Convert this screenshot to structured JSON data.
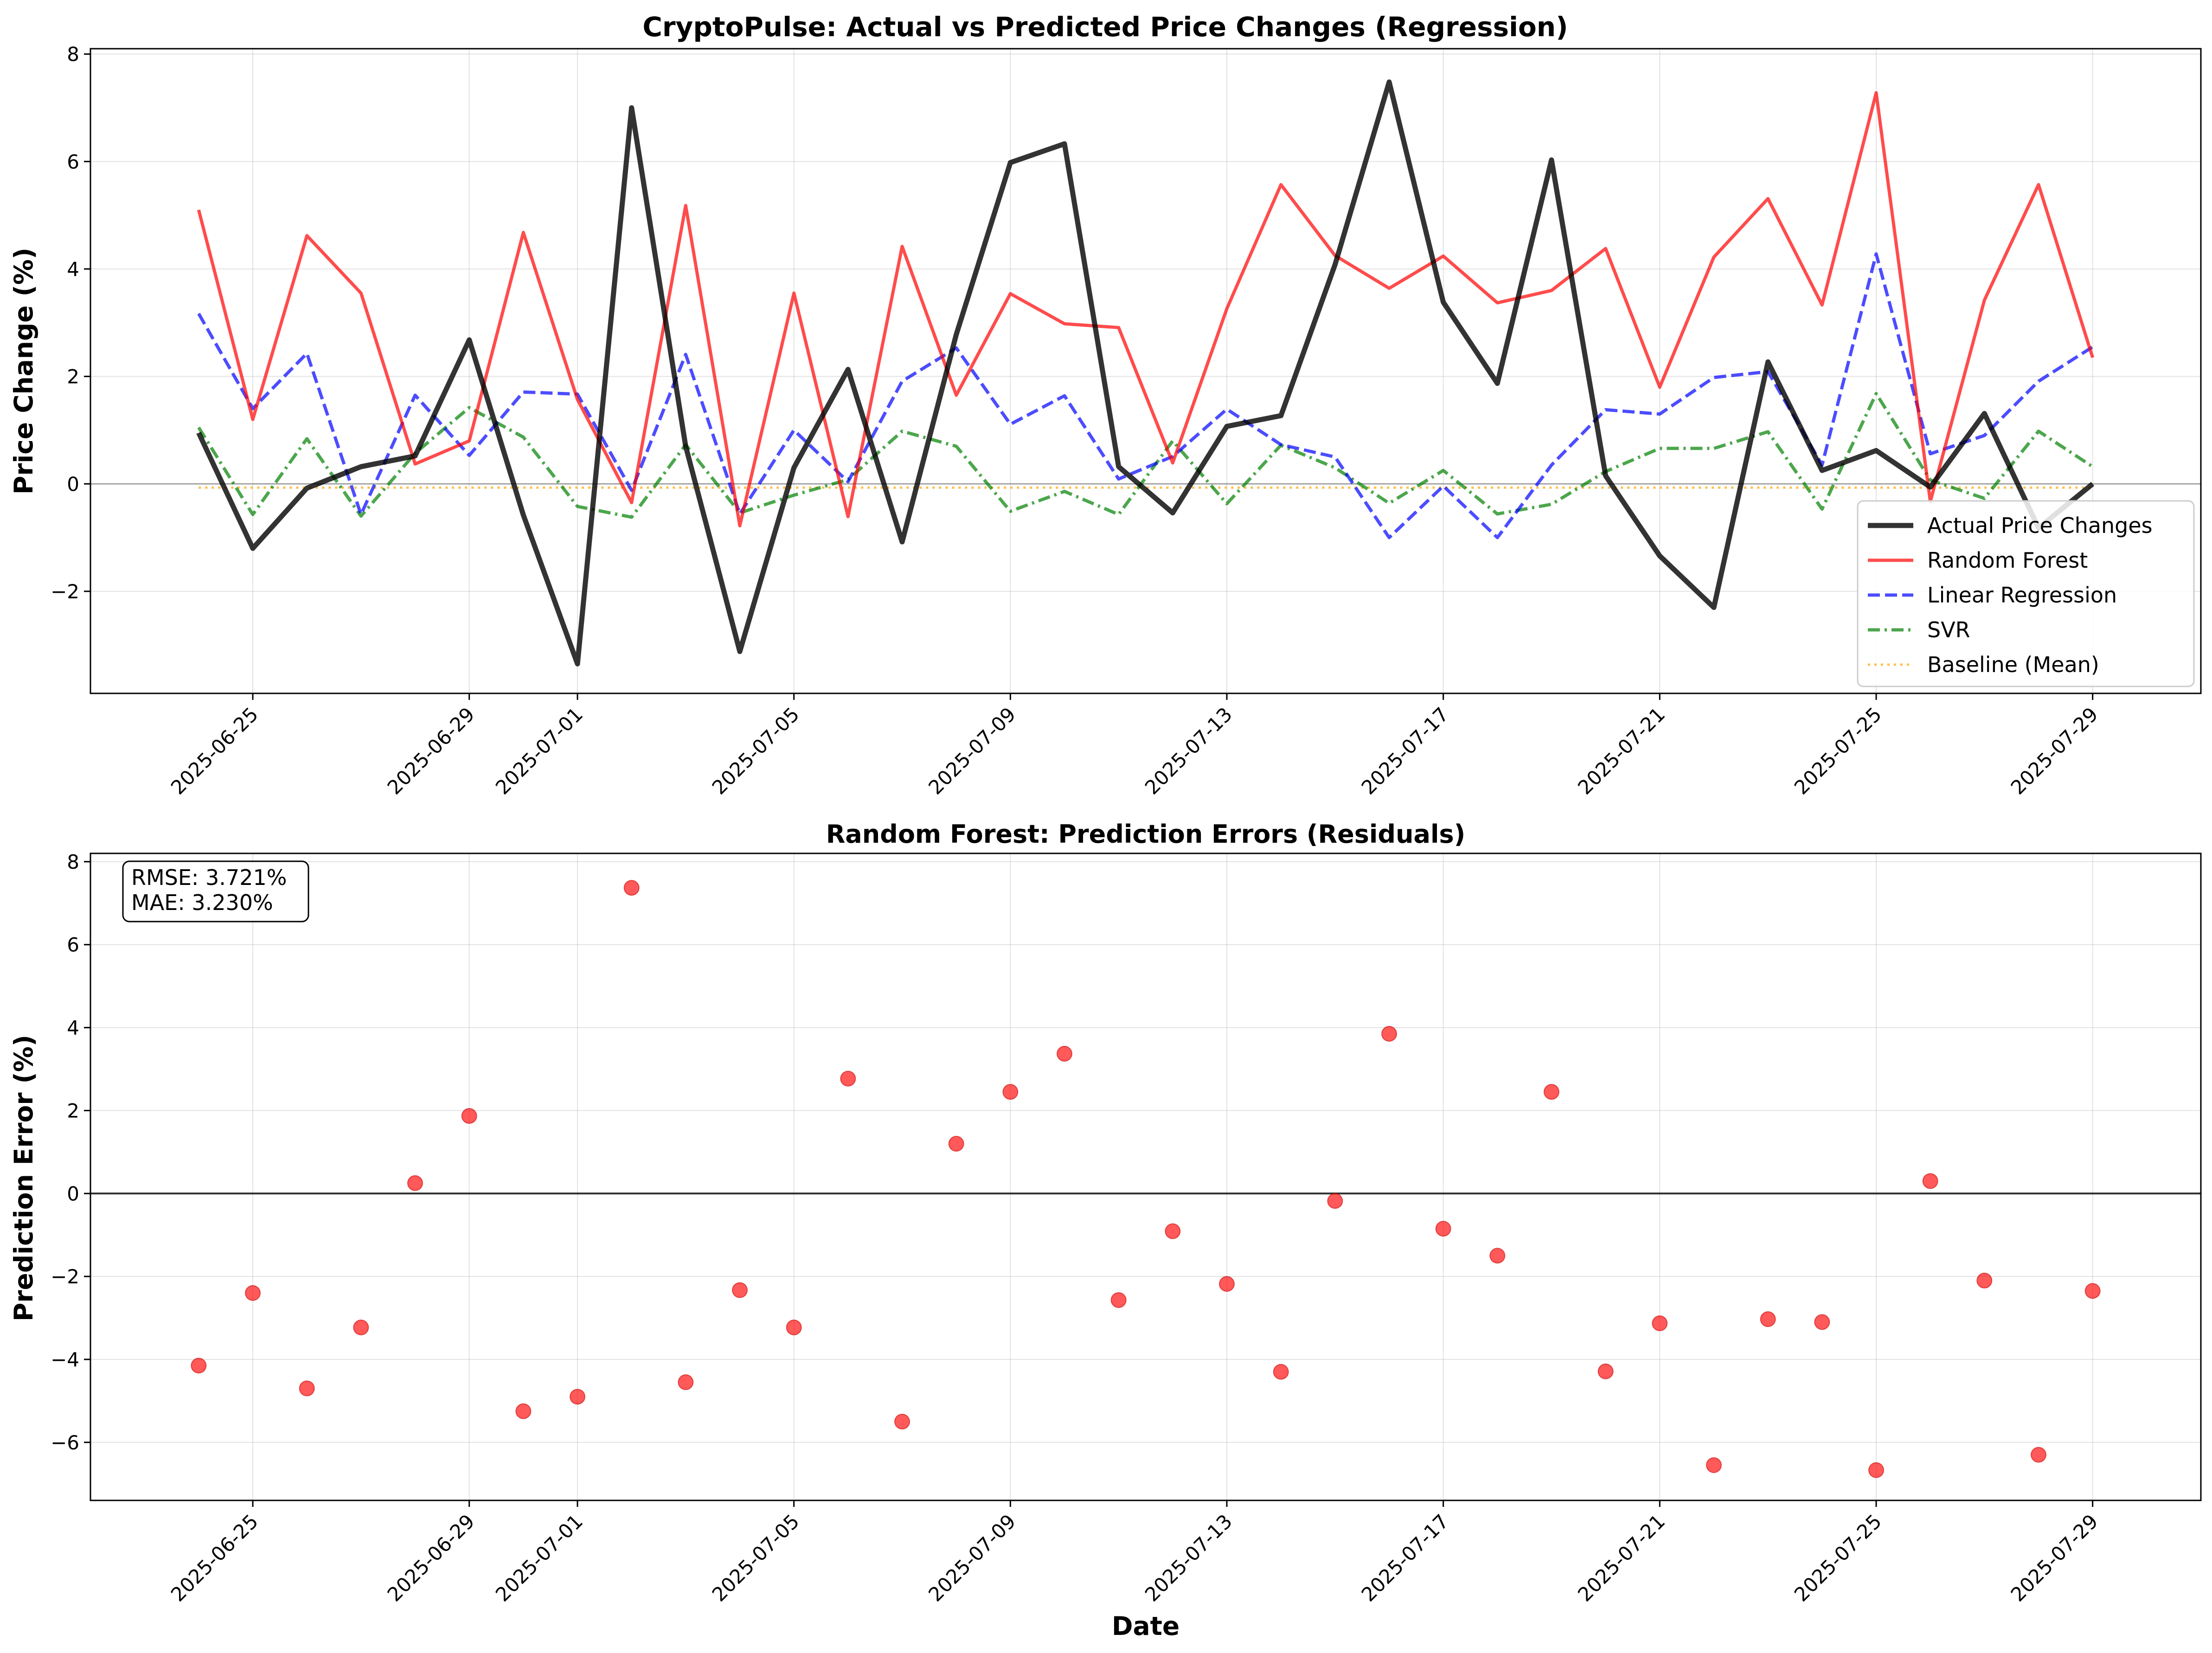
{
  "chart_data": [
    {
      "type": "line",
      "title": "CryptoPulse: Actual vs Predicted Price Changes (Regression)",
      "xlabel": "",
      "ylabel": "Price Change (%)",
      "x_start": "2025-06-24",
      "x_end": "2025-07-29",
      "xlim": [
        "2025-06-22",
        "2025-07-31"
      ],
      "ylim": [
        -3.9,
        8.1
      ],
      "xticks": [
        "2025-06-25",
        "2025-06-29",
        "2025-07-01",
        "2025-07-05",
        "2025-07-09",
        "2025-07-13",
        "2025-07-17",
        "2025-07-21",
        "2025-07-25",
        "2025-07-29"
      ],
      "yticks": [
        -2,
        0,
        2,
        4,
        6,
        8
      ],
      "ytick_labels": [
        "−2",
        "0",
        "2",
        "4",
        "6",
        "8"
      ],
      "grid": true,
      "legend": "bottom-right",
      "zero_line": true,
      "series": [
        {
          "name": "Actual Price Changes",
          "color": "#000000",
          "style": "solid",
          "values": [
            0.95,
            -1.2,
            -0.08,
            0.32,
            0.52,
            2.68,
            -0.58,
            -3.35,
            7.0,
            0.7,
            -3.12,
            0.3,
            2.13,
            -1.08,
            2.78,
            5.98,
            6.33,
            0.32,
            -0.54,
            1.07,
            1.27,
            4.08,
            7.48,
            3.38,
            1.87,
            6.03,
            0.15,
            -1.34,
            -2.3,
            2.27,
            0.25,
            0.62,
            -0.06,
            1.31,
            -0.82,
            0.0
          ]
        },
        {
          "name": "Random Forest",
          "color": "#ff0000",
          "style": "solid",
          "values": [
            5.1,
            1.2,
            4.62,
            3.55,
            0.37,
            0.8,
            4.68,
            1.57,
            -0.35,
            5.18,
            -0.78,
            3.55,
            -0.61,
            4.42,
            1.65,
            3.54,
            2.98,
            2.91,
            0.39,
            3.26,
            5.57,
            4.25,
            3.64,
            4.24,
            3.37,
            3.6,
            4.38,
            1.8,
            4.22,
            5.31,
            3.33,
            7.28,
            -0.33,
            3.42,
            5.57,
            2.35
          ]
        },
        {
          "name": "Linear Regression",
          "color": "#0000ff",
          "style": "dashed",
          "values": [
            3.17,
            1.4,
            2.43,
            -0.57,
            1.65,
            0.53,
            1.71,
            1.67,
            -0.12,
            2.41,
            -0.56,
            1.0,
            0.04,
            1.91,
            2.53,
            1.11,
            1.64,
            0.09,
            0.51,
            1.39,
            0.73,
            0.5,
            -1.0,
            -0.04,
            -1.0,
            0.35,
            1.38,
            1.3,
            1.98,
            2.09,
            0.35,
            4.28,
            0.56,
            0.9,
            1.91,
            2.55
          ]
        },
        {
          "name": "SVR",
          "color": "#008000",
          "style": "dashdot",
          "values": [
            1.05,
            -0.57,
            0.84,
            -0.6,
            0.57,
            1.42,
            0.87,
            -0.42,
            -0.62,
            0.73,
            -0.54,
            -0.21,
            0.08,
            0.98,
            0.7,
            -0.51,
            -0.14,
            -0.57,
            0.8,
            -0.37,
            0.72,
            0.3,
            -0.36,
            0.25,
            -0.56,
            -0.38,
            0.23,
            0.66,
            0.66,
            0.97,
            -0.47,
            1.68,
            0.07,
            -0.27,
            0.98,
            0.32
          ]
        },
        {
          "name": "Baseline (Mean)",
          "color": "#ffa500",
          "style": "dotted",
          "values": [
            -0.07,
            -0.07,
            -0.07,
            -0.07,
            -0.07,
            -0.07,
            -0.07,
            -0.07,
            -0.07,
            -0.07,
            -0.07,
            -0.07,
            -0.07,
            -0.07,
            -0.07,
            -0.07,
            -0.07,
            -0.07,
            -0.07,
            -0.07,
            -0.07,
            -0.07,
            -0.07,
            -0.07,
            -0.07,
            -0.07,
            -0.07,
            -0.07,
            -0.07,
            -0.07,
            -0.07,
            -0.07,
            -0.07,
            -0.07,
            -0.07,
            -0.07
          ]
        }
      ]
    },
    {
      "type": "scatter",
      "title": "Random Forest: Prediction Errors (Residuals)",
      "xlabel": "Date",
      "ylabel": "Prediction Error (%)",
      "xlim": [
        "2025-06-22",
        "2025-07-31"
      ],
      "ylim": [
        -7.4,
        8.2
      ],
      "xticks": [
        "2025-06-25",
        "2025-06-29",
        "2025-07-01",
        "2025-07-05",
        "2025-07-09",
        "2025-07-13",
        "2025-07-17",
        "2025-07-21",
        "2025-07-25",
        "2025-07-29"
      ],
      "yticks": [
        -6,
        -4,
        -2,
        0,
        2,
        4,
        6,
        8
      ],
      "ytick_labels": [
        "−6",
        "−4",
        "−2",
        "0",
        "2",
        "4",
        "6",
        "8"
      ],
      "grid": true,
      "zero_line": true,
      "color": "#ff0000",
      "annotations": [
        "RMSE: 3.721%",
        "MAE: 3.230%"
      ],
      "x": [
        "2025-06-24",
        "2025-06-25",
        "2025-06-26",
        "2025-06-27",
        "2025-06-28",
        "2025-06-29",
        "2025-06-30",
        "2025-07-01",
        "2025-07-02",
        "2025-07-03",
        "2025-07-04",
        "2025-07-05",
        "2025-07-06",
        "2025-07-07",
        "2025-07-08",
        "2025-07-09",
        "2025-07-10",
        "2025-07-11",
        "2025-07-12",
        "2025-07-13",
        "2025-07-14",
        "2025-07-15",
        "2025-07-16",
        "2025-07-17",
        "2025-07-18",
        "2025-07-19",
        "2025-07-20",
        "2025-07-21",
        "2025-07-22",
        "2025-07-23",
        "2025-07-24",
        "2025-07-25",
        "2025-07-26",
        "2025-07-27",
        "2025-07-28",
        "2025-07-29"
      ],
      "values": [
        -4.15,
        -2.4,
        -4.7,
        -3.23,
        0.25,
        1.87,
        -5.25,
        -4.9,
        7.37,
        -4.55,
        -2.33,
        -3.23,
        2.77,
        -5.5,
        1.2,
        2.45,
        3.37,
        -2.57,
        -0.91,
        -2.18,
        -4.3,
        -0.18,
        3.85,
        -0.85,
        -1.5,
        2.45,
        -4.29,
        -3.13,
        -6.55,
        -3.03,
        -3.1,
        -6.67,
        0.3,
        -2.1,
        -6.3,
        -2.35
      ]
    }
  ]
}
